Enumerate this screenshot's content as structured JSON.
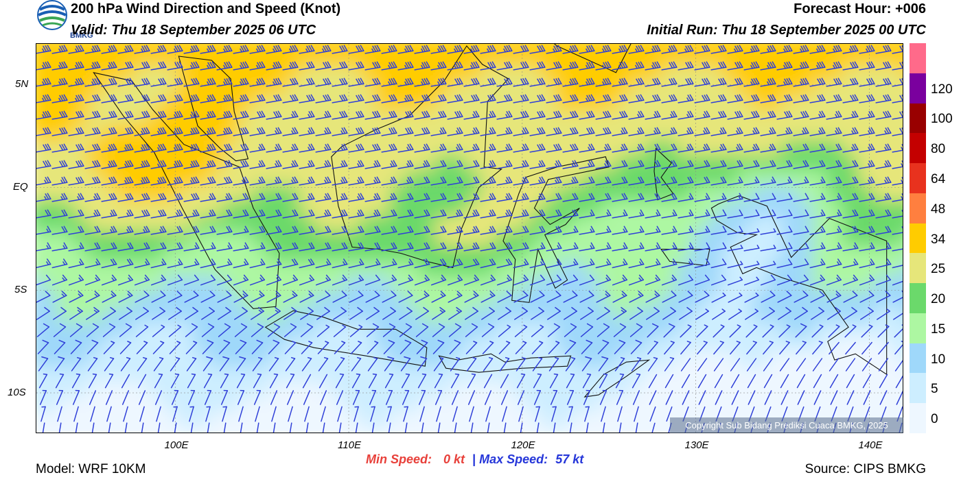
{
  "header": {
    "title": "200 hPa Wind Direction and Speed (Knot)",
    "valid": "Valid: Thu 18 September 2025 06 UTC",
    "forecast_hour": "Forecast Hour: +006",
    "initial_run": "Initial Run: Thu 18 September 2025 00 UTC",
    "logo_text": "BMKG"
  },
  "map": {
    "lat_ticks": [
      {
        "label": "5N",
        "lat": 5
      },
      {
        "label": "EQ",
        "lat": 0
      },
      {
        "label": "5S",
        "lat": -5
      },
      {
        "label": "10S",
        "lat": -10
      }
    ],
    "lon_ticks": [
      {
        "label": "100E",
        "lon": 100
      },
      {
        "label": "110E",
        "lon": 110
      },
      {
        "label": "120E",
        "lon": 120
      },
      {
        "label": "130E",
        "lon": 130
      },
      {
        "label": "140E",
        "lon": 140
      }
    ],
    "extent": {
      "lon_min": 92,
      "lon_max": 142,
      "lat_min": -12,
      "lat_max": 7
    },
    "barb_color": "#2f3fd8",
    "copyright": "Copyright Sub Bidang Prediksi Cuaca BMKG, 2025"
  },
  "legend": {
    "labels": [
      "0",
      "5",
      "10",
      "15",
      "20",
      "25",
      "34",
      "48",
      "64",
      "80",
      "100",
      "120"
    ],
    "colors": [
      "#eef7ff",
      "#cdeeff",
      "#9fd8fa",
      "#adf7a2",
      "#6bd96b",
      "#e6e67a",
      "#ffcc00",
      "#ff7f3f",
      "#e8321e",
      "#c40000",
      "#990000",
      "#7a009e",
      "#ff6a8a"
    ]
  },
  "footer": {
    "min_label": "Min Speed:",
    "min_value": "0 kt",
    "max_label": "Max Speed:",
    "max_value": "57 kt",
    "separator": "|",
    "model": "Model: WRF 10KM",
    "source": "Source: CIPS BMKG"
  }
}
